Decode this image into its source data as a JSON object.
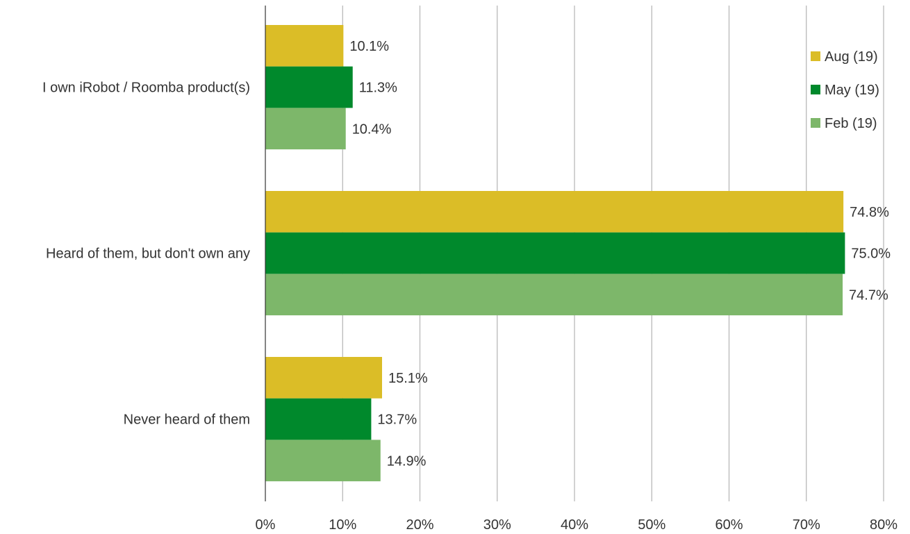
{
  "chart_data": {
    "type": "bar",
    "orientation": "horizontal",
    "categories": [
      "I own iRobot / Roomba product(s)",
      "Heard of them, but don't own any",
      "Never heard of them"
    ],
    "series": [
      {
        "name": "Aug (19)",
        "color": "#dbbd27",
        "values": [
          10.1,
          74.8,
          15.1
        ],
        "labels": [
          "10.1%",
          "74.8%",
          "15.1%"
        ]
      },
      {
        "name": "May (19)",
        "color": "#00892c",
        "values": [
          11.3,
          75.0,
          13.7
        ],
        "labels": [
          "11.3%",
          "75.0%",
          "13.7%"
        ]
      },
      {
        "name": "Feb (19)",
        "color": "#7db76a",
        "values": [
          10.4,
          74.7,
          14.9
        ],
        "labels": [
          "10.4%",
          "74.7%",
          "14.9%"
        ]
      }
    ],
    "xlim": [
      0,
      80
    ],
    "xticks": [
      0,
      10,
      20,
      30,
      40,
      50,
      60,
      70,
      80
    ],
    "xtick_labels": [
      "0%",
      "10%",
      "20%",
      "30%",
      "40%",
      "50%",
      "60%",
      "70%",
      "80%"
    ],
    "grid": "vertical",
    "legend": "top-right"
  }
}
